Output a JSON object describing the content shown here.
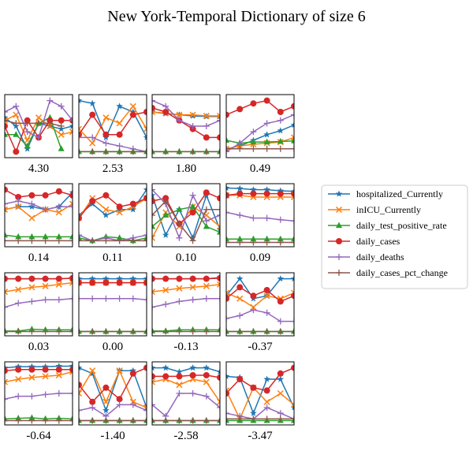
{
  "chart_data": {
    "type": "line",
    "title": "New York-Temporal Dictionary of size 6",
    "grid": false,
    "legend_position": "right",
    "series_styles": [
      {
        "name": "hospitalized_Currently",
        "color": "#1f77b4",
        "marker": "star"
      },
      {
        "name": "inICU_Currently",
        "color": "#ff7f0e",
        "marker": "x"
      },
      {
        "name": "daily_test_positive_rate",
        "color": "#2ca02c",
        "marker": "triangle"
      },
      {
        "name": "daily_cases",
        "color": "#d62728",
        "marker": "circle"
      },
      {
        "name": "daily_deaths",
        "color": "#9467bd",
        "marker": "plus"
      },
      {
        "name": "daily_cases_pct_change",
        "color": "#8c564b",
        "marker": "plus"
      }
    ],
    "panels": [
      {
        "label": "4.30",
        "series": [
          [
            0.65,
            0.5,
            0.1,
            0.55,
            0.5,
            0.45,
            0.5
          ],
          [
            0.6,
            0.7,
            0.25,
            0.65,
            0.5,
            0.35,
            0.4
          ],
          [
            0.35,
            0.35,
            0.15,
            0.55,
            0.65,
            0.1,
            null
          ],
          [
            0.5,
            0.05,
            0.6,
            0.3,
            0.6,
            0.6,
            0.6
          ],
          [
            0.75,
            0.85,
            0.4,
            0.3,
            0.95,
            0.85,
            0.6
          ],
          [
            0.6,
            0.55,
            0.55,
            0.55,
            0.55,
            0.5,
            null
          ]
        ]
      },
      {
        "label": "2.53",
        "series": [
          [
            0.95,
            0.9,
            0.3,
            0.85,
            0.75,
            0.3
          ],
          [
            0.45,
            0.2,
            0.65,
            0.55,
            0.85,
            0.45
          ],
          [
            0.05,
            0.05,
            0.05,
            0.05,
            0.05,
            0.05
          ],
          [
            0.35,
            0.7,
            0.35,
            0.35,
            0.7,
            0.75
          ],
          [
            0.3,
            0.3,
            0.2,
            0.15,
            0.1,
            0.05
          ],
          [
            0.05,
            0.05,
            0.05,
            0.05,
            0.05,
            0.05
          ]
        ]
      },
      {
        "label": "1.80",
        "series": [
          [
            0.75,
            0.72,
            0.7,
            0.68,
            0.67,
            0.67
          ],
          [
            0.75,
            0.73,
            0.7,
            0.7,
            0.68,
            0.68
          ],
          [
            0.05,
            0.05,
            0.05,
            0.05,
            0.05,
            0.05
          ],
          [
            0.82,
            0.75,
            0.6,
            0.45,
            0.3,
            0.3
          ],
          [
            0.95,
            0.85,
            0.6,
            0.5,
            0.5,
            0.6
          ],
          [
            0.05,
            0.05,
            0.05,
            0.05,
            0.05,
            0.05
          ]
        ]
      },
      {
        "label": "0.49",
        "series": [
          [
            0.1,
            0.15,
            0.25,
            0.35,
            0.42,
            0.52
          ],
          [
            0.1,
            0.15,
            0.18,
            0.2,
            0.22,
            0.3
          ],
          [
            0.25,
            0.2,
            0.22,
            0.22,
            0.23,
            0.24
          ],
          [
            0.7,
            0.8,
            0.9,
            0.95,
            0.75,
            0.85
          ],
          [
            0.05,
            0.2,
            0.4,
            0.55,
            0.6,
            0.7
          ],
          [
            0.1,
            0.1,
            0.1,
            0.1,
            0.1,
            0.1
          ]
        ]
      },
      {
        "label": "0.14",
        "series": [
          [
            0.6,
            0.65,
            0.65,
            0.6,
            0.65,
            0.9
          ],
          [
            0.6,
            0.65,
            0.45,
            0.6,
            0.55,
            0.7
          ],
          [
            0.15,
            0.12,
            0.12,
            0.12,
            0.12,
            0.12
          ],
          [
            0.95,
            0.82,
            0.85,
            0.85,
            0.92,
            0.85
          ],
          [
            0.7,
            0.75,
            0.7,
            0.6,
            0.65,
            0.65
          ],
          [
            0.05,
            0.05,
            0.05,
            0.05,
            0.05,
            0.05
          ]
        ]
      },
      {
        "label": "0.11",
        "series": [
          [
            0.5,
            0.7,
            0.5,
            0.6,
            0.6,
            0.95
          ],
          [
            0.45,
            0.8,
            0.6,
            0.55,
            0.65,
            0.8
          ],
          [
            0.1,
            0.05,
            0.12,
            0.1,
            0.05,
            0.1
          ],
          [
            0.45,
            0.75,
            0.85,
            0.65,
            0.7,
            0.8
          ],
          [
            0.15,
            0.05,
            0.1,
            0.05,
            0.1,
            0.15
          ],
          [
            0.05,
            0.05,
            0.05,
            0.05,
            0.05,
            0.05
          ]
        ]
      },
      {
        "label": "0.10",
        "series": [
          [
            0.85,
            0.15,
            0.6,
            0.1,
            0.85,
            0.25
          ],
          [
            0.1,
            0.55,
            0.3,
            0.65,
            0.5,
            0.3
          ],
          [
            0.3,
            0.5,
            0.6,
            0.65,
            0.3,
            0.2
          ],
          [
            0.75,
            0.8,
            0.35,
            0.55,
            0.9,
            0.8
          ],
          [
            0.95,
            0.7,
            0.1,
            0.85,
            0.4,
            0.5
          ],
          [
            0.5,
            0.75,
            0.35,
            0.05,
            0.6,
            0.6
          ]
        ]
      },
      {
        "label": "0.09",
        "series": [
          [
            0.98,
            0.97,
            0.95,
            0.95,
            0.93,
            0.92
          ],
          [
            0.85,
            0.85,
            0.82,
            0.82,
            0.82,
            0.82
          ],
          [
            0.08,
            0.08,
            0.08,
            0.08,
            0.08,
            0.08
          ],
          [
            0.85,
            0.88,
            0.88,
            0.88,
            0.88,
            0.88
          ],
          [
            0.55,
            0.5,
            0.45,
            0.45,
            0.42,
            0.4
          ],
          [
            0.02,
            0.02,
            0.02,
            0.02,
            0.02,
            0.02
          ]
        ]
      },
      {
        "label": "0.03",
        "series": [
          [
            0.95,
            0.95,
            0.95,
            0.95,
            0.95,
            0.96
          ],
          [
            0.72,
            0.76,
            0.8,
            0.82,
            0.85,
            0.88
          ],
          [
            0.03,
            0.03,
            0.06,
            0.05,
            0.05,
            0.05
          ],
          [
            0.95,
            0.95,
            0.95,
            0.95,
            0.95,
            0.96
          ],
          [
            0.45,
            0.52,
            0.55,
            0.58,
            0.58,
            0.6
          ],
          [
            0.02,
            0.02,
            0.02,
            0.02,
            0.02,
            0.02
          ]
        ]
      },
      {
        "label": "0.00",
        "series": [
          [
            0.95,
            0.95,
            0.95,
            0.95,
            0.95,
            0.95
          ],
          [
            0.88,
            0.88,
            0.88,
            0.88,
            0.88,
            0.88
          ],
          [
            0.02,
            0.02,
            0.02,
            0.02,
            0.02,
            0.02
          ],
          [
            0.88,
            0.88,
            0.88,
            0.88,
            0.88,
            0.88
          ],
          [
            0.6,
            0.6,
            0.6,
            0.6,
            0.6,
            0.58
          ],
          [
            0.02,
            0.02,
            0.02,
            0.02,
            0.02,
            0.02
          ]
        ]
      },
      {
        "label": "-0.13",
        "series": [
          [
            0.95,
            0.95,
            0.95,
            0.95,
            0.95,
            0.97
          ],
          [
            0.72,
            0.75,
            0.78,
            0.8,
            0.82,
            0.85
          ],
          [
            0.03,
            0.03,
            0.05,
            0.05,
            0.05,
            0.05
          ],
          [
            0.95,
            0.95,
            0.95,
            0.95,
            0.95,
            0.96
          ],
          [
            0.45,
            0.5,
            0.55,
            0.58,
            0.6,
            0.6
          ],
          [
            0.02,
            0.02,
            0.02,
            0.02,
            0.02,
            0.02
          ]
        ]
      },
      {
        "label": "-0.37",
        "series": [
          [
            0.65,
            0.95,
            0.6,
            0.65,
            0.95,
            0.95
          ],
          [
            0.7,
            0.6,
            0.45,
            0.65,
            0.6,
            0.7
          ],
          [
            0.02,
            0.02,
            0.02,
            0.02,
            0.02,
            0.02
          ],
          [
            0.6,
            0.8,
            0.65,
            0.75,
            0.55,
            0.65
          ],
          [
            0.25,
            0.3,
            0.4,
            0.35,
            0.2,
            0.2
          ],
          [
            0.02,
            0.02,
            0.02,
            0.02,
            0.02,
            0.02
          ]
        ]
      },
      {
        "label": "-0.64",
        "series": [
          [
            0.95,
            0.97,
            0.97,
            0.97,
            0.98,
            0.98
          ],
          [
            0.7,
            0.75,
            0.78,
            0.8,
            0.82,
            0.88
          ],
          [
            0.05,
            0.06,
            0.07,
            0.05,
            0.06,
            0.05
          ],
          [
            0.9,
            0.92,
            0.92,
            0.92,
            0.92,
            0.92
          ],
          [
            0.4,
            0.45,
            0.45,
            0.48,
            0.5,
            0.5
          ],
          [
            0.02,
            0.02,
            0.02,
            0.02,
            0.02,
            0.02
          ]
        ]
      },
      {
        "label": "-1.40",
        "series": [
          [
            0.95,
            0.85,
            0.2,
            0.9,
            0.9,
            0.25
          ],
          [
            0.5,
            0.9,
            0.35,
            0.9,
            0.35,
            0.25
          ],
          [
            0.02,
            0.02,
            0.02,
            0.02,
            0.02,
            0.02
          ],
          [
            0.65,
            0.35,
            0.6,
            0.4,
            0.85,
            0.95
          ],
          [
            0.2,
            0.25,
            0.1,
            0.3,
            0.3,
            0.2
          ],
          [
            0.02,
            0.02,
            0.02,
            0.02,
            0.02,
            0.02
          ]
        ]
      },
      {
        "label": "-2.58",
        "series": [
          [
            0.95,
            0.95,
            0.88,
            0.95,
            0.95,
            0.88
          ],
          [
            0.7,
            0.75,
            0.65,
            0.75,
            0.7,
            0.35
          ],
          [
            0.02,
            0.02,
            0.02,
            0.02,
            0.02,
            0.02
          ],
          [
            0.8,
            0.8,
            0.8,
            0.82,
            0.82,
            0.78
          ],
          [
            0.3,
            0.1,
            0.5,
            0.5,
            0.45,
            0.25
          ],
          [
            0.02,
            0.02,
            0.02,
            0.02,
            0.02,
            0.02
          ]
        ]
      },
      {
        "label": "-3.47",
        "series": [
          [
            0.8,
            0.78,
            0.15,
            0.75,
            0.75,
            0.25
          ],
          [
            0.55,
            0.05,
            0.6,
            0.35,
            0.5,
            0.3
          ],
          [
            0.02,
            0.02,
            0.02,
            0.02,
            0.02,
            0.02
          ],
          [
            0.5,
            0.75,
            0.6,
            0.55,
            0.85,
            0.95
          ],
          [
            0.15,
            0.1,
            0.05,
            0.25,
            0.15,
            0.05
          ],
          [
            0.05,
            0.05,
            0.05,
            0.05,
            0.05,
            0.05
          ]
        ]
      }
    ]
  }
}
